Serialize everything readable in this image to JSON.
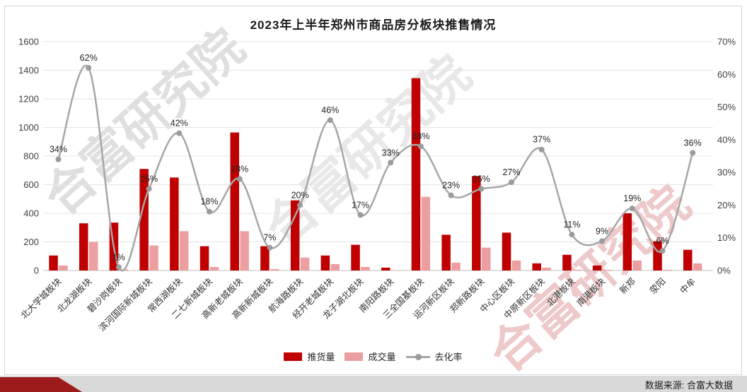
{
  "chart": {
    "title": "2023年上半年郑州市商品房分板块推售情况"
  },
  "chart_data": {
    "type": "bar+line",
    "title": "2023年上半年郑州市商品房分板块推售情况",
    "categories": [
      "北大学城板块",
      "北龙湖板块",
      "碧沙岗板块",
      "滨河国际新城板块",
      "常西湖板块",
      "二七新城板块",
      "高新老城板块",
      "高新新城板块",
      "航海路板块",
      "经开老城板块",
      "龙子湖北板块",
      "南阳路板块",
      "三全国基板块",
      "运河新区板块",
      "郑新路板块",
      "中心区板块",
      "中原新区板块",
      "北港板块",
      "南港板块",
      "新郑",
      "荥阳",
      "中牟"
    ],
    "series": [
      {
        "name": "推货量",
        "type": "bar",
        "values": [
          105,
          330,
          335,
          710,
          650,
          170,
          965,
          170,
          490,
          105,
          180,
          20,
          1345,
          250,
          660,
          265,
          50,
          110,
          35,
          400,
          205,
          145
        ]
      },
      {
        "name": "成交量",
        "type": "bar",
        "values": [
          35,
          200,
          8,
          175,
          275,
          25,
          275,
          10,
          90,
          45,
          25,
          2,
          515,
          55,
          160,
          70,
          20,
          6,
          5,
          70,
          5,
          50
        ]
      },
      {
        "name": "去化率",
        "type": "line",
        "axis": "right",
        "values": [
          34,
          62,
          1,
          25,
          42,
          18,
          28,
          7,
          20,
          46,
          17,
          33,
          38,
          23,
          25,
          27,
          37,
          11,
          9,
          19,
          6,
          36
        ],
        "labels": [
          "34%",
          "62%",
          "1%",
          "25%",
          "42%",
          "18%",
          "28%",
          "7%",
          "20%",
          "46%",
          "17%",
          "33%",
          "38%",
          "23%",
          "25%",
          "27%",
          "37%",
          "11%",
          "9%",
          "19%",
          "6%",
          "36%"
        ]
      }
    ],
    "left_axis": {
      "min": 0,
      "max": 1600,
      "step": 200,
      "ticks": [
        "0",
        "200",
        "400",
        "600",
        "800",
        "1000",
        "1200",
        "1400",
        "1600"
      ]
    },
    "right_axis": {
      "min": 0,
      "max": 70,
      "step": 10,
      "ticks": [
        "0%",
        "10%",
        "20%",
        "30%",
        "40%",
        "50%",
        "60%",
        "70%"
      ]
    },
    "grid": true,
    "legend_position": "bottom"
  },
  "legend": {
    "supply": "推货量",
    "deals": "成交量",
    "rate": "去化率"
  },
  "colors": {
    "supply_bar": "#c00000",
    "deals_bar": "#ec9fa1",
    "rate_line": "#a6a6a6",
    "rate_marker": "#9b9b9b",
    "grid_line": "#e4e4e4",
    "axis_line": "#c2c2c2",
    "axis_text": "#404040",
    "label_text": "#262626",
    "strip_bg": "#d9d9d9",
    "flag_red": "#9e1b1b"
  },
  "watermark": {
    "text": "合富研究院"
  },
  "footer": {
    "source": "数据来源: 合富大数据"
  }
}
